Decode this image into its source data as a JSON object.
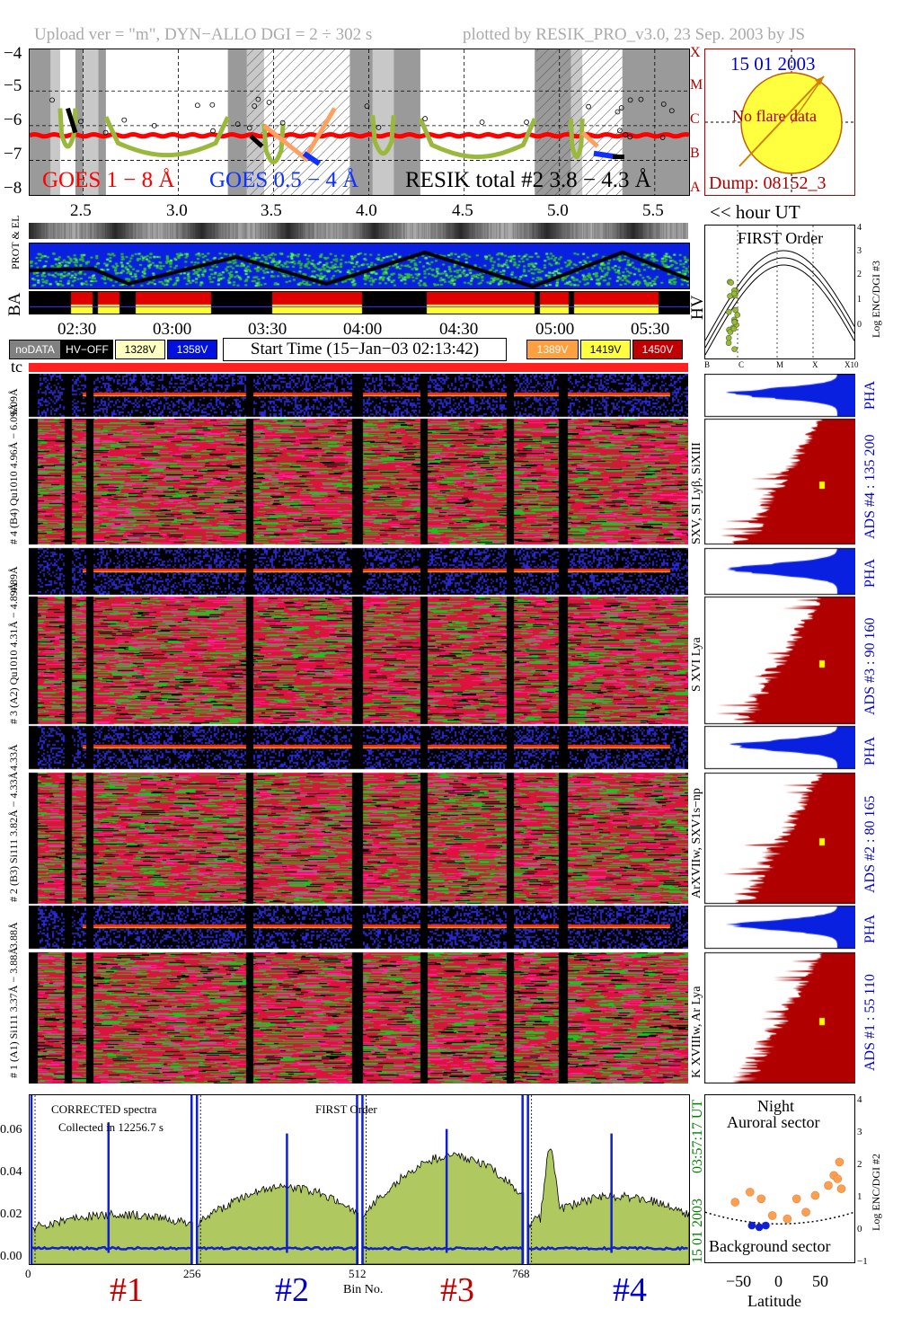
{
  "header": {
    "upload_text": "Upload ver = \"m\", DYN−ALLO DGI =   2 ÷ 302 s",
    "plotted_text": "plotted by RESIK_PRO_v3.0, 23 Sep. 2003 by JS"
  },
  "sun_panel": {
    "date": "15 01 2003",
    "flare_text": "No flare data",
    "dump_text": "Dump: 08152_3",
    "class_letters": [
      "X",
      "M",
      "C",
      "B",
      "A"
    ]
  },
  "hour_axis": {
    "label": "<< hour UT",
    "ticks": [
      "2.5",
      "3.0",
      "3.5",
      "4.0",
      "4.5",
      "5.0",
      "5.5"
    ]
  },
  "clock_axis": {
    "ticks": [
      "02:30",
      "03:00",
      "03:30",
      "04:00",
      "04:30",
      "05:00",
      "05:30"
    ]
  },
  "status_legend": {
    "nodata": "noDATA",
    "hvoff": "HV−OFF",
    "v1328": "1328V",
    "v1358": "1358V",
    "start_time": "Start Time (15−Jan−03 02:13:42)",
    "v1389": "1389V",
    "v1419": "1419V",
    "v1450": "1450V"
  },
  "row_labels": {
    "prot": "PROT & EL",
    "ba": "BA",
    "hv": "HV",
    "tc": "tc"
  },
  "first_order_panel": {
    "title": "FIRST Order",
    "right_label": "Log ENC/DGI #3",
    "yticks": [
      "0",
      "1",
      "2",
      "3",
      "4"
    ],
    "xticks": [
      "B",
      "C",
      "M",
      "X",
      "X10"
    ]
  },
  "detectors": [
    {
      "pha_label": "6.09Å",
      "left_label": "# 4 (B4) Qu1010 4.96Å − 6.09Å",
      "line_label": "SXV, SI Lyβ, SiXIII",
      "ads_label": "ADS #4 :   135 200"
    },
    {
      "pha_label": "4.89Å",
      "left_label": "# 3 (A2) Qu1010 4.31Å − 4.89Å",
      "line_label": "S XVI Lya",
      "ads_label": "ADS #3 :    90 160"
    },
    {
      "pha_label": "4.33Å",
      "left_label": "# 2 (B3) Si111 3.82Å − 4.33Å",
      "line_label": "ArXVIIw, SXV1s−np",
      "ads_label": "ADS #2 :    80 165"
    },
    {
      "pha_label": "3.88Å",
      "left_label": "# 1 (A1) Si111 3.37Å − 3.88Å",
      "line_label": "K XVIIIw, Ar Lya",
      "ads_label": "ADS #1 :    55 110"
    }
  ],
  "pha_word": "PHA",
  "spectrum_panel": {
    "text_left_1": "CORRECTED spectra",
    "text_left_2": "Collected in 12256.7 s",
    "text_mid": "FIRST Order",
    "time_label": "03:57:17 UT",
    "date_label": "15 01 2003",
    "xlabel": "Bin No.",
    "bin_labels": [
      "#1",
      "#2",
      "#3",
      "#4"
    ]
  },
  "latitude_panel": {
    "title_1": "Night",
    "title_2": "Auroral sector",
    "bottom_text": "Background sector",
    "xlabel": "Latitude",
    "right_label": "Log ENC/DGI #2"
  },
  "colors": {
    "goes_long": "#ff0000",
    "goes_short": "#1030ff",
    "resik": "#000000",
    "olive": "#9ab83c",
    "orange": "#ffa060",
    "ads_fill": "#b00000",
    "pha_fill": "#0a20e0",
    "sun_fill": "#ffff40",
    "date_blue": "#0000cc",
    "dark_red": "#b00000",
    "spec_fill": "#b0c860",
    "spec_blue": "#1020d0"
  },
  "chart_data": [
    {
      "type": "line",
      "title": "",
      "series": [
        {
          "name": "GOES 1 − 8 Å"
        },
        {
          "name": "GOES 0.5 − 4 Å"
        },
        {
          "name": "RESIK total #2  3.8 − 4.3 Å"
        }
      ],
      "xlabel": "hour UT",
      "xlim": [
        2.22,
        5.68
      ],
      "ylim": [
        -8,
        -3.8
      ],
      "yticks": [
        "−4",
        "−5",
        "−6",
        "−7",
        "−8"
      ],
      "xticks": [
        2.5,
        3.0,
        3.5,
        4.0,
        4.5,
        5.0,
        5.5
      ]
    },
    {
      "type": "line",
      "title": "",
      "xlabel": "Bin No.",
      "xticks": [
        0,
        256,
        512,
        768
      ],
      "xlim": [
        0,
        1020
      ],
      "ylim": [
        0,
        0.075
      ],
      "yticks": [
        "0.00",
        "0.02",
        "0.04",
        "0.06"
      ],
      "series": [
        {
          "name": "CORRECTED spectra"
        }
      ]
    },
    {
      "type": "scatter",
      "title": "",
      "xlabel": "Latitude",
      "xticks": [
        "−50",
        "0",
        "50"
      ],
      "yticks": [
        "−1",
        "0",
        "1",
        "2",
        "3",
        "4"
      ],
      "xlim": [
        -80,
        80
      ],
      "ylim": [
        -1,
        4
      ],
      "points": [
        [
          -48,
          0.8
        ],
        [
          -32,
          1.1
        ],
        [
          -20,
          0.9
        ],
        [
          -8,
          0.4
        ],
        [
          8,
          0.3
        ],
        [
          18,
          0.9
        ],
        [
          28,
          0.5
        ],
        [
          38,
          1.0
        ],
        [
          52,
          1.3
        ],
        [
          58,
          1.6
        ],
        [
          62,
          1.5
        ],
        [
          64,
          2.0
        ],
        [
          66,
          1.2
        ],
        [
          -30,
          0.1
        ],
        [
          -22,
          0.05
        ],
        [
          -15,
          0.1
        ]
      ]
    }
  ]
}
